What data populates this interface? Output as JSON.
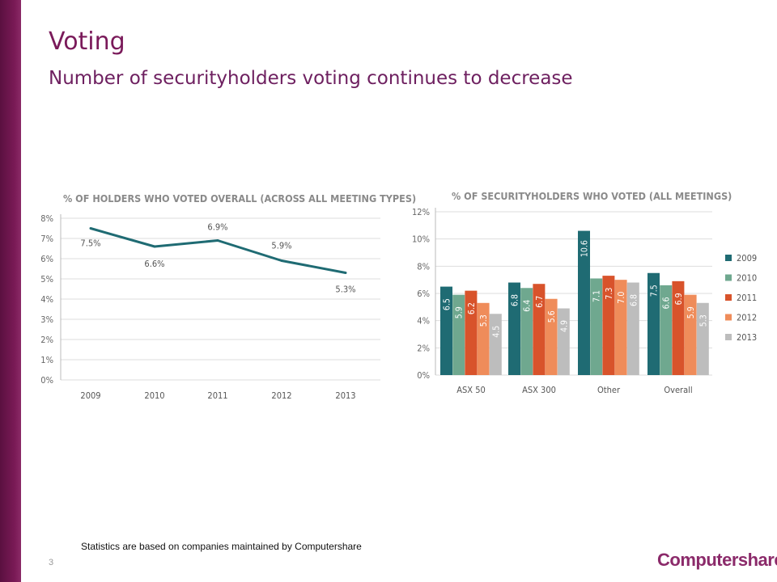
{
  "slide": {
    "title": "Voting",
    "subtitle": "Number of securityholders voting continues to decrease",
    "footnote": "Statistics are based on companies maintained by Computershare",
    "page_number": "3",
    "logo_text": "Computershare"
  },
  "colors": {
    "brand": "#7a1a5a",
    "line": "#1f6b73",
    "series": [
      "#1f6b73",
      "#6fa88f",
      "#d8532b",
      "#ef8c5a",
      "#bdbdbd"
    ]
  },
  "chart_data": [
    {
      "type": "line",
      "title": "% OF HOLDERS WHO VOTED OVERALL (ACROSS ALL MEETING TYPES)",
      "x": [
        "2009",
        "2010",
        "2011",
        "2012",
        "2013"
      ],
      "values": [
        7.5,
        6.6,
        6.9,
        5.9,
        5.3
      ],
      "data_labels": [
        "7.5%",
        "6.6%",
        "6.9%",
        "5.9%",
        "5.3%"
      ],
      "ylim": [
        0,
        8
      ],
      "yticks": [
        "0%",
        "1%",
        "2%",
        "3%",
        "4%",
        "5%",
        "6%",
        "7%",
        "8%"
      ],
      "grid": true
    },
    {
      "type": "bar",
      "title": "% OF SECURITYHOLDERS WHO VOTED (ALL MEETINGS)",
      "categories": [
        "ASX 50",
        "ASX 300",
        "Other",
        "Overall"
      ],
      "series": [
        {
          "name": "2009",
          "values": [
            6.5,
            6.8,
            10.6,
            7.5
          ]
        },
        {
          "name": "2010",
          "values": [
            5.9,
            6.4,
            7.1,
            6.6
          ]
        },
        {
          "name": "2011",
          "values": [
            6.2,
            6.7,
            7.3,
            6.9
          ]
        },
        {
          "name": "2012",
          "values": [
            5.3,
            5.6,
            7.0,
            5.9
          ]
        },
        {
          "name": "2013",
          "values": [
            4.5,
            4.9,
            6.8,
            5.3
          ]
        }
      ],
      "ylim": [
        0,
        12
      ],
      "yticks": [
        "0%",
        "2%",
        "4%",
        "6%",
        "8%",
        "10%",
        "12%"
      ],
      "legend": "right",
      "grid": true
    }
  ]
}
